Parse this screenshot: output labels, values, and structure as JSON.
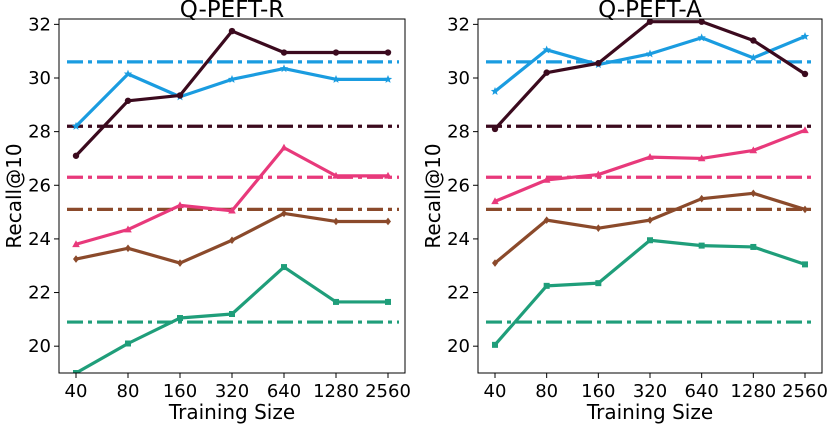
{
  "chart_data": [
    {
      "type": "line",
      "title": "Q-PEFT-R",
      "xlabel": "Training Size",
      "ylabel": "Recall@10",
      "categories": [
        "40",
        "80",
        "160",
        "320",
        "640",
        "1280",
        "2560"
      ],
      "ylim": [
        19.0,
        32.2
      ],
      "yticks": [
        20,
        22,
        24,
        26,
        28,
        30,
        32
      ],
      "grid": false,
      "series": [
        {
          "color": "#1a9ce0",
          "marker": "star",
          "values": [
            28.2,
            30.15,
            29.3,
            29.95,
            30.35,
            29.95,
            29.95
          ]
        },
        {
          "color": "#3b0a1e",
          "marker": "circle",
          "values": [
            27.1,
            29.15,
            29.35,
            31.75,
            30.95,
            30.95,
            30.95
          ]
        },
        {
          "color": "#e8397b",
          "marker": "triangle",
          "values": [
            23.8,
            24.35,
            25.25,
            25.05,
            27.4,
            26.35,
            26.35
          ]
        },
        {
          "color": "#8b4a2b",
          "marker": "diamond",
          "values": [
            23.25,
            23.65,
            23.1,
            23.95,
            24.95,
            24.65,
            24.65
          ]
        },
        {
          "color": "#1f9e7a",
          "marker": "square",
          "values": [
            19.0,
            20.1,
            21.05,
            21.2,
            22.95,
            21.65,
            21.65
          ]
        }
      ],
      "baselines": [
        {
          "color": "#1a9ce0",
          "value": 30.6
        },
        {
          "color": "#3b0a1e",
          "value": 28.2
        },
        {
          "color": "#e8397b",
          "value": 26.3
        },
        {
          "color": "#8b4a2b",
          "value": 25.1
        },
        {
          "color": "#1f9e7a",
          "value": 20.9
        }
      ]
    },
    {
      "type": "line",
      "title": "Q-PEFT-A",
      "xlabel": "Training Size",
      "ylabel": "Recall@10",
      "categories": [
        "40",
        "80",
        "160",
        "320",
        "640",
        "1280",
        "2560"
      ],
      "ylim": [
        19.0,
        32.2
      ],
      "yticks": [
        20,
        22,
        24,
        26,
        28,
        30,
        32
      ],
      "grid": false,
      "series": [
        {
          "color": "#1a9ce0",
          "marker": "star",
          "values": [
            29.5,
            31.05,
            30.5,
            30.9,
            31.5,
            30.75,
            31.55
          ]
        },
        {
          "color": "#3b0a1e",
          "marker": "circle",
          "values": [
            28.1,
            30.2,
            30.55,
            32.1,
            32.1,
            31.4,
            30.15
          ]
        },
        {
          "color": "#e8397b",
          "marker": "triangle",
          "values": [
            25.4,
            26.2,
            26.4,
            27.05,
            27.0,
            27.3,
            28.05
          ]
        },
        {
          "color": "#8b4a2b",
          "marker": "diamond",
          "values": [
            23.1,
            24.7,
            24.4,
            24.7,
            25.5,
            25.7,
            25.1
          ]
        },
        {
          "color": "#1f9e7a",
          "marker": "square",
          "values": [
            20.05,
            22.25,
            22.35,
            23.95,
            23.75,
            23.7,
            23.05
          ]
        }
      ],
      "baselines": [
        {
          "color": "#1a9ce0",
          "value": 30.6
        },
        {
          "color": "#3b0a1e",
          "value": 28.2
        },
        {
          "color": "#e8397b",
          "value": 26.3
        },
        {
          "color": "#8b4a2b",
          "value": 25.1
        },
        {
          "color": "#1f9e7a",
          "value": 20.9
        }
      ]
    }
  ]
}
